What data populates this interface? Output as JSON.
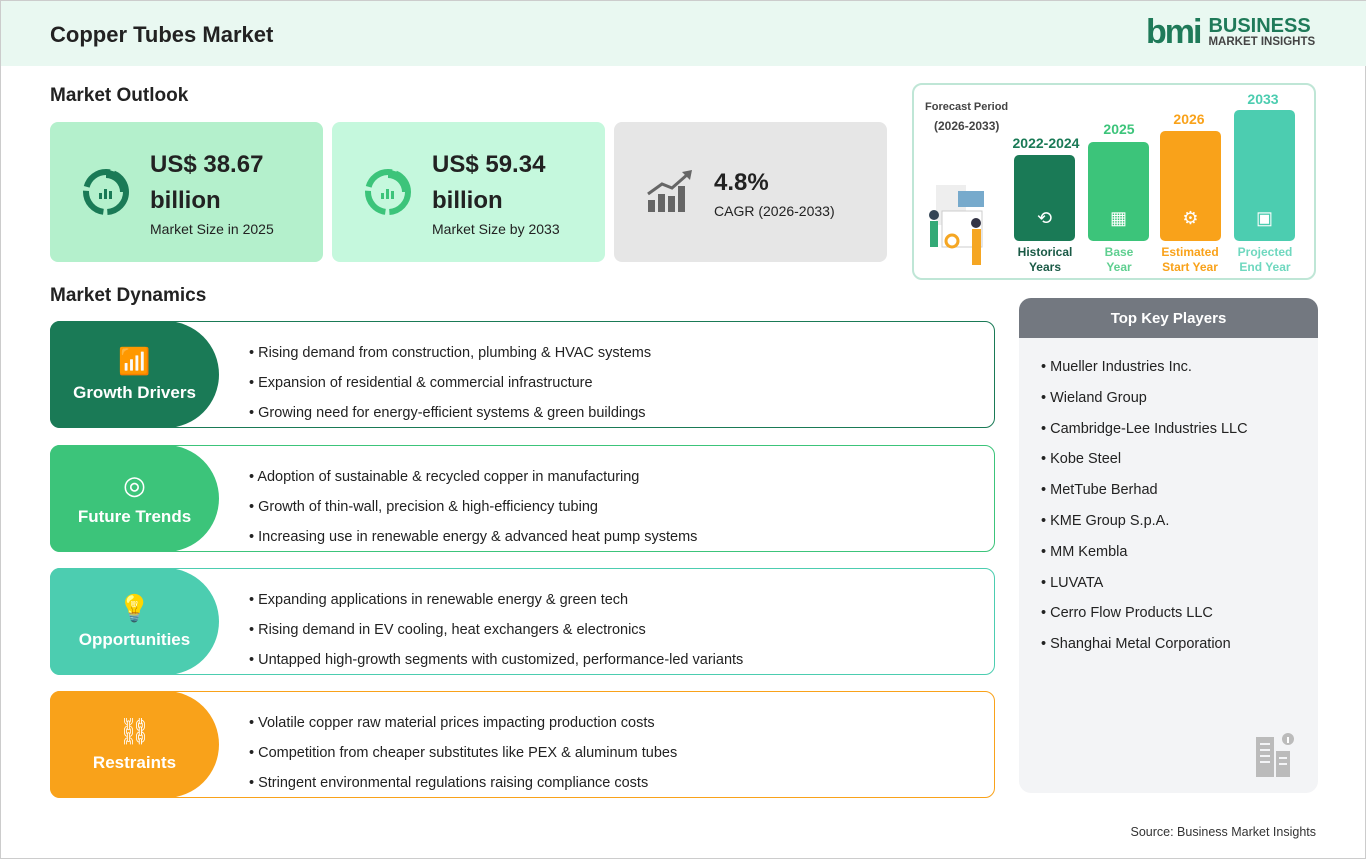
{
  "header": {
    "title": "Copper Tubes Market",
    "logo": {
      "mark": "bmi",
      "line1": "BUSINESS",
      "line2": "MARKET INSIGHTS"
    }
  },
  "outlook": {
    "heading": "Market Outlook",
    "cards": [
      {
        "value": "US$ 38.67",
        "value2": "billion",
        "label": "Market Size in 2025",
        "icon": "donut-chart-icon",
        "color": "#b4f0cc"
      },
      {
        "value": "US$ 59.34",
        "value2": "billion",
        "label": "Market Size by 2033",
        "icon": "donut-chart-icon",
        "color": "#c5f8dd"
      },
      {
        "value": "4.8%",
        "label": "CAGR (2026-2033)",
        "icon": "growth-chart-icon",
        "color": "#e6e6e6"
      }
    ]
  },
  "forecast": {
    "title": "Forecast Period",
    "range": "(2026-2033)",
    "bars": [
      {
        "year": "2022-2024",
        "caption1": "Historical",
        "caption2": "Years",
        "color": "#1a7a56",
        "icon": "history-icon"
      },
      {
        "year": "2025",
        "caption1": "Base",
        "caption2": "Year",
        "color": "#3cc47a",
        "icon": "calendar-icon"
      },
      {
        "year": "2026",
        "caption1": "Estimated",
        "caption2": "Start Year",
        "color": "#f9a21a",
        "icon": "gear-monitor-icon"
      },
      {
        "year": "2033",
        "caption1": "Projected",
        "caption2": "End Year",
        "color": "#4ccdb0",
        "icon": "presentation-icon"
      }
    ]
  },
  "dynamics": {
    "heading": "Market Dynamics",
    "sections": [
      {
        "title": "Growth Drivers",
        "color": "#1a7a56",
        "icon": "bar-chart-icon",
        "items": [
          "Rising demand from construction, plumbing & HVAC systems",
          "Expansion of residential & commercial infrastructure",
          "Growing need for energy-efficient systems & green buildings"
        ]
      },
      {
        "title": "Future Trends",
        "color": "#3cc47a",
        "icon": "target-icon",
        "items": [
          "Adoption of sustainable & recycled copper in manufacturing",
          "Growth of thin-wall, precision & high-efficiency tubing",
          "Increasing use in renewable energy & advanced heat pump systems"
        ]
      },
      {
        "title": "Opportunities",
        "color": "#4ccdb0",
        "icon": "lightbulb-hand-icon",
        "items": [
          "Expanding applications in renewable energy & green tech",
          "Rising demand in EV cooling, heat exchangers & electronics",
          "Untapped high-growth segments with customized, performance-led variants"
        ]
      },
      {
        "title": "Restraints",
        "color": "#f9a21a",
        "icon": "broken-link-icon",
        "items": [
          "Volatile copper raw material prices impacting production costs",
          "Competition from cheaper substitutes like PEX & aluminum tubes",
          "Stringent environmental regulations raising compliance costs"
        ]
      }
    ]
  },
  "players": {
    "heading": "Top Key Players",
    "items": [
      "Mueller Industries Inc.",
      "Wieland Group",
      "Cambridge-Lee Industries LLC",
      "Kobe Steel",
      "MetTube Berhad",
      "KME Group S.p.A.",
      "MM Kembla",
      "LUVATA",
      "Cerro Flow Products LLC",
      "Shanghai Metal Corporation"
    ]
  },
  "source": "Source: Business Market Insights"
}
